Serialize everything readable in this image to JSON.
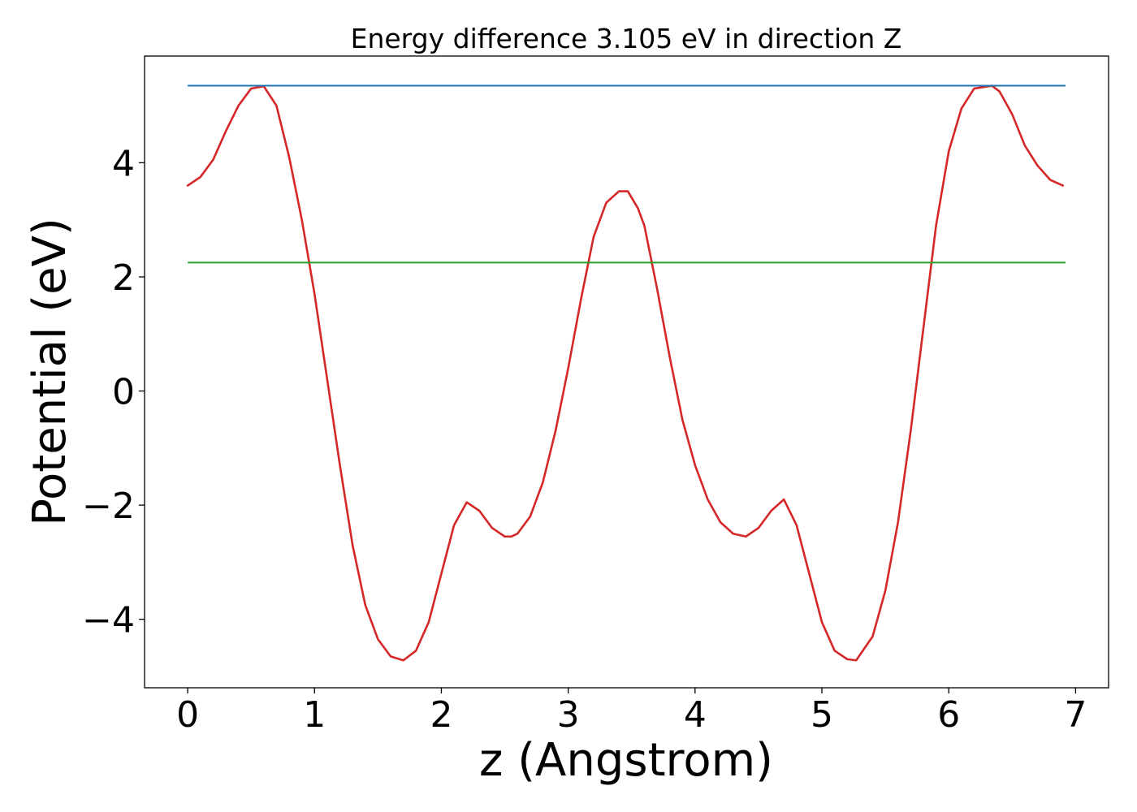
{
  "chart_data": {
    "type": "line",
    "title": "Energy difference 3.105 eV in direction Z",
    "xlabel": "z (Angstrom)",
    "ylabel": "Potential (eV)",
    "xlim": [
      -0.34,
      7.26
    ],
    "ylim": [
      -5.2,
      5.87
    ],
    "x_ticks": [
      0,
      1,
      2,
      3,
      4,
      5,
      6,
      7
    ],
    "x_tick_labels": [
      "0",
      "1",
      "2",
      "3",
      "4",
      "5",
      "6",
      "7"
    ],
    "y_ticks": [
      -4,
      -2,
      0,
      2,
      4
    ],
    "y_tick_labels": [
      "−4",
      "−2",
      "0",
      "2",
      "4"
    ],
    "grid": false,
    "series": [
      {
        "kind": "line",
        "color": "#d62728",
        "x": [
          0.0,
          0.1,
          0.2,
          0.3,
          0.4,
          0.5,
          0.6,
          0.7,
          0.8,
          0.9,
          1.0,
          1.1,
          1.2,
          1.3,
          1.4,
          1.5,
          1.6,
          1.7,
          1.8,
          1.9,
          2.0,
          2.1,
          2.2,
          2.3,
          2.4,
          2.5,
          2.55,
          2.6,
          2.7,
          2.8,
          2.9,
          3.0,
          3.1,
          3.2,
          3.3,
          3.4,
          3.47,
          3.55,
          3.6,
          3.7,
          3.8,
          3.9,
          4.0,
          4.1,
          4.2,
          4.3,
          4.4,
          4.5,
          4.6,
          4.7,
          4.8,
          4.9,
          5.0,
          5.1,
          5.2,
          5.27,
          5.4,
          5.5,
          5.6,
          5.7,
          5.8,
          5.9,
          6.0,
          6.1,
          6.2,
          6.34,
          6.4,
          6.5,
          6.6,
          6.7,
          6.8,
          6.9
        ],
        "y": [
          3.6,
          3.75,
          4.05,
          4.55,
          5.0,
          5.3,
          5.34,
          5.0,
          4.1,
          3.0,
          1.7,
          0.2,
          -1.3,
          -2.7,
          -3.75,
          -4.35,
          -4.65,
          -4.72,
          -4.55,
          -4.05,
          -3.2,
          -2.35,
          -1.95,
          -2.1,
          -2.4,
          -2.55,
          -2.55,
          -2.5,
          -2.2,
          -1.6,
          -0.7,
          0.4,
          1.6,
          2.7,
          3.3,
          3.5,
          3.5,
          3.2,
          2.9,
          1.8,
          0.6,
          -0.5,
          -1.3,
          -1.9,
          -2.3,
          -2.5,
          -2.55,
          -2.4,
          -2.1,
          -1.9,
          -2.35,
          -3.2,
          -4.05,
          -4.55,
          -4.7,
          -4.72,
          -4.3,
          -3.5,
          -2.3,
          -0.7,
          1.1,
          2.9,
          4.2,
          4.95,
          5.3,
          5.35,
          5.25,
          4.85,
          4.3,
          3.95,
          3.7,
          3.6
        ]
      },
      {
        "kind": "hline",
        "color": "#1f77b4",
        "y": 5.35,
        "x_range": [
          0.0,
          6.92
        ]
      },
      {
        "kind": "hline",
        "color": "#2ca02c",
        "y": 2.25,
        "x_range": [
          0.0,
          6.92
        ]
      }
    ]
  }
}
